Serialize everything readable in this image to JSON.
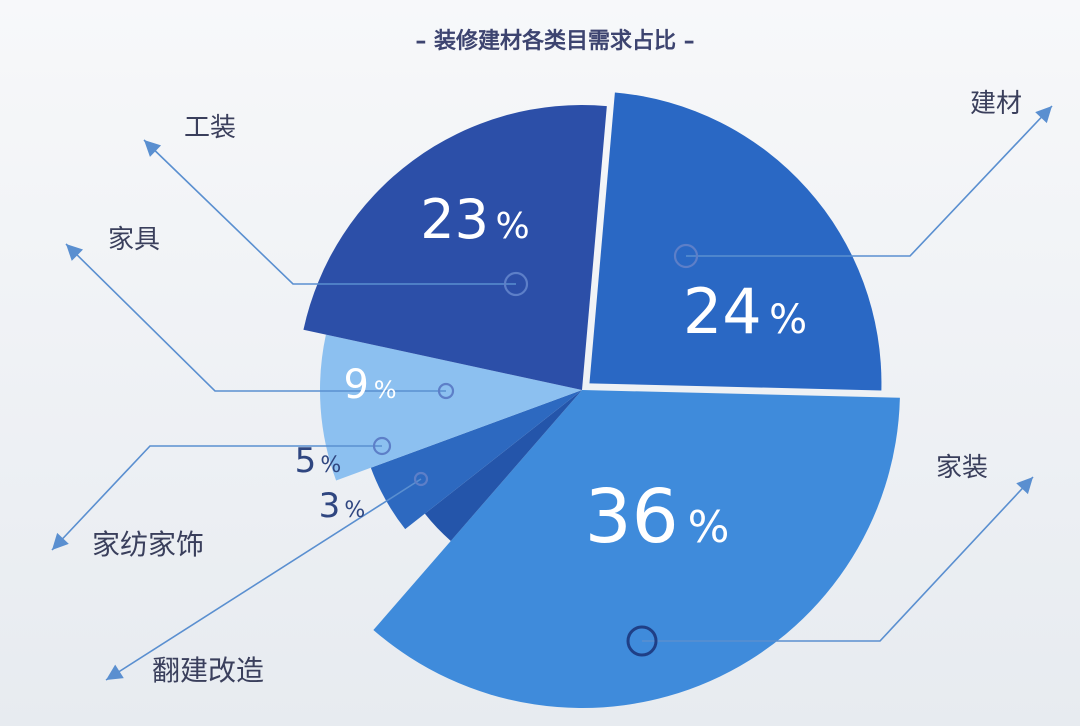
{
  "chart_data": {
    "type": "pie",
    "title": "– 装修建材各类目需求占比 –",
    "unit": "%",
    "slices": [
      {
        "label": "建材",
        "value": 24,
        "value_text": "24",
        "color": "#2a68c4"
      },
      {
        "label": "家装",
        "value": 36,
        "value_text": "36",
        "color": "#3f8bdb"
      },
      {
        "label": "翻建改造",
        "value": 3,
        "value_text": "3",
        "color": "#2455aa"
      },
      {
        "label": "家纺家饰",
        "value": 5,
        "value_text": "5",
        "color": "#2d69c0"
      },
      {
        "label": "家具",
        "value": 9,
        "value_text": "9",
        "color": "#8cc0f0"
      },
      {
        "label": "工装",
        "value": 23,
        "value_text": "23",
        "color": "#2c4fa8"
      }
    ]
  },
  "colors": {
    "background": "#f4f5f7",
    "title": "#3d4470",
    "label": "#3a3f5c",
    "leader": "#5a8fd0"
  }
}
